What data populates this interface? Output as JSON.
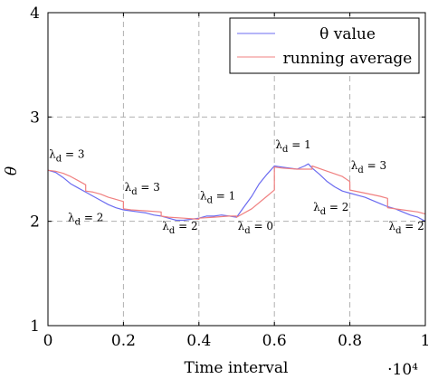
{
  "chart_data": {
    "type": "line",
    "xlabel": "Time interval",
    "x_scale_label": "·10⁴",
    "ylabel": "θ",
    "xlim": [
      0,
      1
    ],
    "ylim": [
      1,
      4
    ],
    "x_ticks": [
      "0",
      "0.2",
      "0.4",
      "0.6",
      "0.8",
      "1"
    ],
    "x_tick_values": [
      0,
      0.2,
      0.4,
      0.6,
      0.8,
      1
    ],
    "y_ticks": [
      "1",
      "2",
      "3",
      "4"
    ],
    "y_tick_values": [
      1,
      2,
      3,
      4
    ],
    "grid": true,
    "legend_position": "top-right",
    "series": [
      {
        "name": "θ value",
        "color": "#6b6bf0",
        "x": [
          0,
          0.02,
          0.04,
          0.06,
          0.08,
          0.1,
          0.12,
          0.14,
          0.16,
          0.18,
          0.2,
          0.22,
          0.24,
          0.26,
          0.28,
          0.3,
          0.32,
          0.34,
          0.36,
          0.38,
          0.4,
          0.42,
          0.44,
          0.46,
          0.48,
          0.5,
          0.52,
          0.54,
          0.56,
          0.58,
          0.6,
          0.62,
          0.64,
          0.66,
          0.68,
          0.69,
          0.7,
          0.72,
          0.74,
          0.76,
          0.78,
          0.8,
          0.82,
          0.84,
          0.86,
          0.88,
          0.9,
          0.92,
          0.94,
          0.96,
          0.98,
          1.0
        ],
        "y": [
          2.49,
          2.47,
          2.42,
          2.36,
          2.32,
          2.28,
          2.24,
          2.2,
          2.16,
          2.13,
          2.11,
          2.1,
          2.09,
          2.08,
          2.06,
          2.05,
          2.03,
          2.01,
          2.01,
          2.02,
          2.03,
          2.05,
          2.05,
          2.06,
          2.05,
          2.04,
          2.14,
          2.24,
          2.36,
          2.45,
          2.53,
          2.52,
          2.51,
          2.5,
          2.53,
          2.55,
          2.51,
          2.45,
          2.38,
          2.33,
          2.29,
          2.27,
          2.25,
          2.23,
          2.2,
          2.17,
          2.14,
          2.12,
          2.09,
          2.06,
          2.04,
          2.0
        ]
      },
      {
        "name": "running average",
        "color": "#f08080",
        "x": [
          0,
          0.02,
          0.04,
          0.06,
          0.08,
          0.1,
          0.1,
          0.12,
          0.14,
          0.16,
          0.18,
          0.2,
          0.2,
          0.22,
          0.26,
          0.3,
          0.3,
          0.32,
          0.36,
          0.4,
          0.4,
          0.44,
          0.48,
          0.5,
          0.5,
          0.54,
          0.58,
          0.6,
          0.6,
          0.62,
          0.66,
          0.7,
          0.7,
          0.74,
          0.78,
          0.8,
          0.8,
          0.84,
          0.88,
          0.9,
          0.9,
          0.94,
          0.98,
          1.0
        ],
        "y": [
          2.49,
          2.48,
          2.46,
          2.43,
          2.39,
          2.35,
          2.29,
          2.28,
          2.26,
          2.23,
          2.21,
          2.19,
          2.12,
          2.11,
          2.1,
          2.09,
          2.05,
          2.04,
          2.03,
          2.02,
          2.03,
          2.04,
          2.05,
          2.05,
          2.04,
          2.12,
          2.24,
          2.3,
          2.52,
          2.51,
          2.5,
          2.5,
          2.53,
          2.48,
          2.43,
          2.38,
          2.3,
          2.27,
          2.24,
          2.22,
          2.13,
          2.11,
          2.09,
          2.07
        ]
      }
    ],
    "annotations": [
      {
        "text": "λd = 3",
        "x": 0.05,
        "y": 2.61
      },
      {
        "text": "λd = 2",
        "x": 0.1,
        "y": 2.0
      },
      {
        "text": "λd = 3",
        "x": 0.25,
        "y": 2.29
      },
      {
        "text": "λd = 2",
        "x": 0.35,
        "y": 1.92
      },
      {
        "text": "λd = 1",
        "x": 0.45,
        "y": 2.21
      },
      {
        "text": "λd = 0",
        "x": 0.55,
        "y": 1.92
      },
      {
        "text": "λd = 1",
        "x": 0.65,
        "y": 2.7
      },
      {
        "text": "λd = 3",
        "x": 0.85,
        "y": 2.5
      },
      {
        "text": "λd = 2",
        "x": 0.75,
        "y": 2.1
      },
      {
        "text": "λd = 2",
        "x": 0.95,
        "y": 1.92
      }
    ]
  }
}
